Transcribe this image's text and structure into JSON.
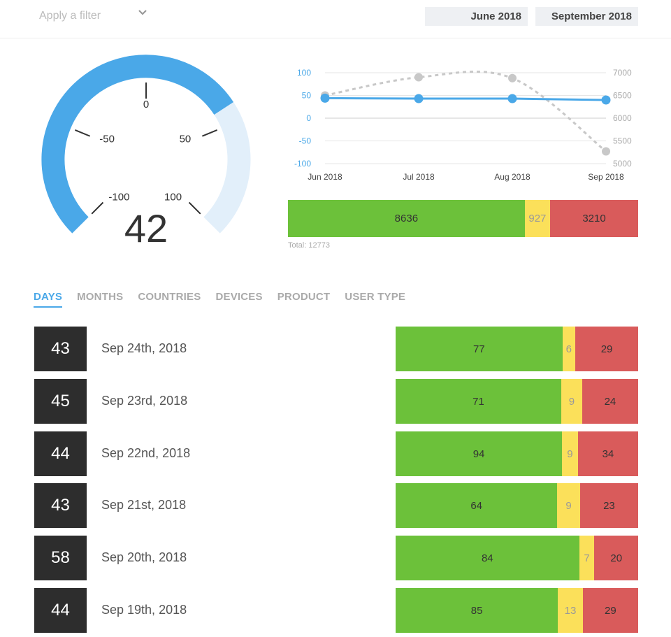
{
  "filter": {
    "placeholder": "Apply a filter",
    "icon": "chevron-down-icon"
  },
  "date_range": {
    "start": "June 2018",
    "end": "September 2018"
  },
  "colors": {
    "gauge_filled": "#4aa8e8",
    "gauge_track": "#e2effa",
    "positive": "#6cc13a",
    "neutral": "#fbe05a",
    "negative": "#d95b5b",
    "score_bg": "#2d2d2d"
  },
  "gauge": {
    "value": "42",
    "score": 42,
    "min": -100,
    "max": 100,
    "ticks": [
      "-100",
      "-50",
      "0",
      "50",
      "100"
    ]
  },
  "chart_data": {
    "type": "line",
    "x": [
      "Jun 2018",
      "Jul 2018",
      "Aug 2018",
      "Sep 2018"
    ],
    "series": [
      {
        "axis": "left",
        "values": [
          44,
          43,
          43,
          40
        ]
      },
      {
        "axis": "right",
        "values": [
          6500,
          6900,
          6880,
          5270
        ]
      }
    ],
    "y_left": {
      "range": [
        -100,
        100
      ],
      "ticks": [
        "100",
        "50",
        "0",
        "-50",
        "-100"
      ]
    },
    "y_right": {
      "range": [
        5000,
        7000
      ],
      "ticks": [
        "7000",
        "6500",
        "6000",
        "5500",
        "5000"
      ]
    },
    "grid": true
  },
  "summary": {
    "positive": "8636",
    "neutral": "927",
    "negative": "3210",
    "total_label": "Total: 12773"
  },
  "tabs": [
    "DAYS",
    "MONTHS",
    "COUNTRIES",
    "DEVICES",
    "PRODUCT",
    "USER TYPE"
  ],
  "rows": [
    {
      "score": "43",
      "date": "Sep 24th, 2018",
      "positive": "77",
      "neutral": "6",
      "negative": "29"
    },
    {
      "score": "45",
      "date": "Sep 23rd, 2018",
      "positive": "71",
      "neutral": "9",
      "negative": "24"
    },
    {
      "score": "44",
      "date": "Sep 22nd, 2018",
      "positive": "94",
      "neutral": "9",
      "negative": "34"
    },
    {
      "score": "43",
      "date": "Sep 21st, 2018",
      "positive": "64",
      "neutral": "9",
      "negative": "23"
    },
    {
      "score": "58",
      "date": "Sep 20th, 2018",
      "positive": "84",
      "neutral": "7",
      "negative": "20"
    },
    {
      "score": "44",
      "date": "Sep 19th, 2018",
      "positive": "85",
      "neutral": "13",
      "negative": "29"
    }
  ]
}
